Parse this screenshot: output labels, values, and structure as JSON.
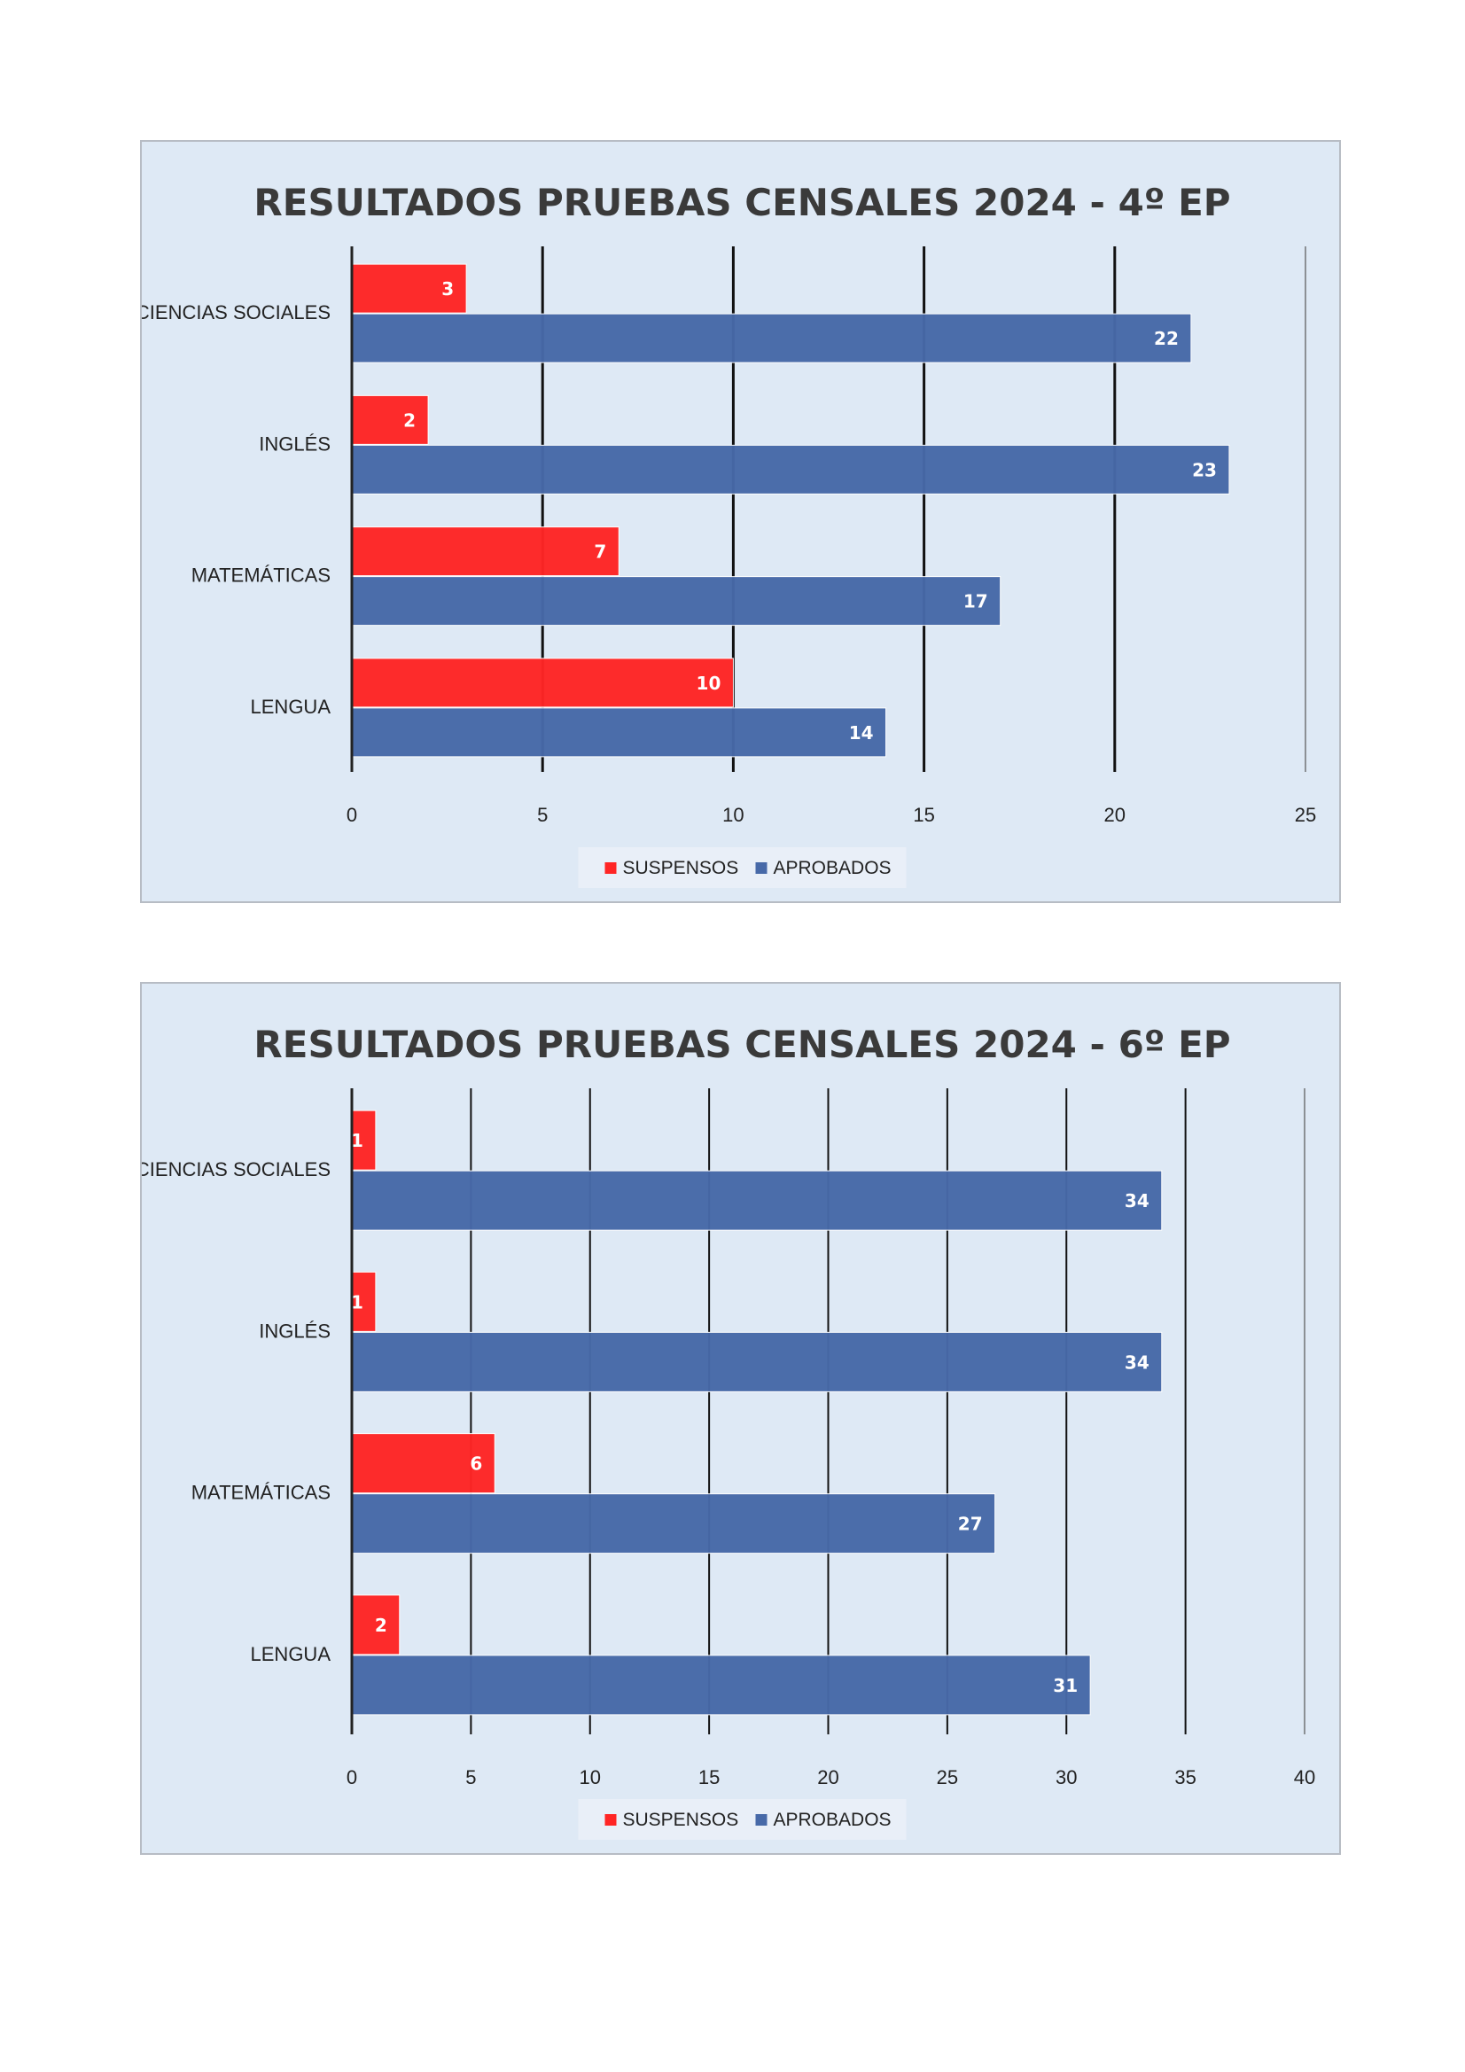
{
  "charts": [
    {
      "chart_data": {
        "type": "bar",
        "orientation": "horizontal",
        "title": "RESULTADOS PRUEBAS CENSALES 2024 - 4º EP",
        "categories": [
          "CIENCIAS SOCIALES",
          "INGLÉS",
          "MATEMÁTICAS",
          "LENGUA"
        ],
        "series": [
          {
            "name": "SUSPENSOS",
            "values": [
              3,
              2,
              7,
              10
            ],
            "color": "#ff2525"
          },
          {
            "name": "APROBADOS",
            "values": [
              22,
              23,
              17,
              14
            ],
            "color": "#4769a8"
          }
        ],
        "xlim": [
          0,
          25
        ],
        "ticks": [
          0,
          5,
          10,
          15,
          20,
          25
        ],
        "grid": true,
        "data_labels": true,
        "legend": "bottom"
      }
    },
    {
      "chart_data": {
        "type": "bar",
        "orientation": "horizontal",
        "title": "RESULTADOS PRUEBAS CENSALES 2024 - 6º EP",
        "categories": [
          "CIENCIAS SOCIALES",
          "INGLÉS",
          "MATEMÁTICAS",
          "LENGUA"
        ],
        "series": [
          {
            "name": "SUSPENSOS",
            "values": [
              1,
              1,
              6,
              2
            ],
            "color": "#ff2525"
          },
          {
            "name": "APROBADOS",
            "values": [
              34,
              34,
              27,
              31
            ],
            "color": "#4769a8"
          }
        ],
        "xlim": [
          0,
          40
        ],
        "ticks": [
          0,
          5,
          10,
          15,
          20,
          25,
          30,
          35,
          40
        ],
        "grid": true,
        "data_labels": true,
        "legend": "bottom"
      }
    }
  ]
}
